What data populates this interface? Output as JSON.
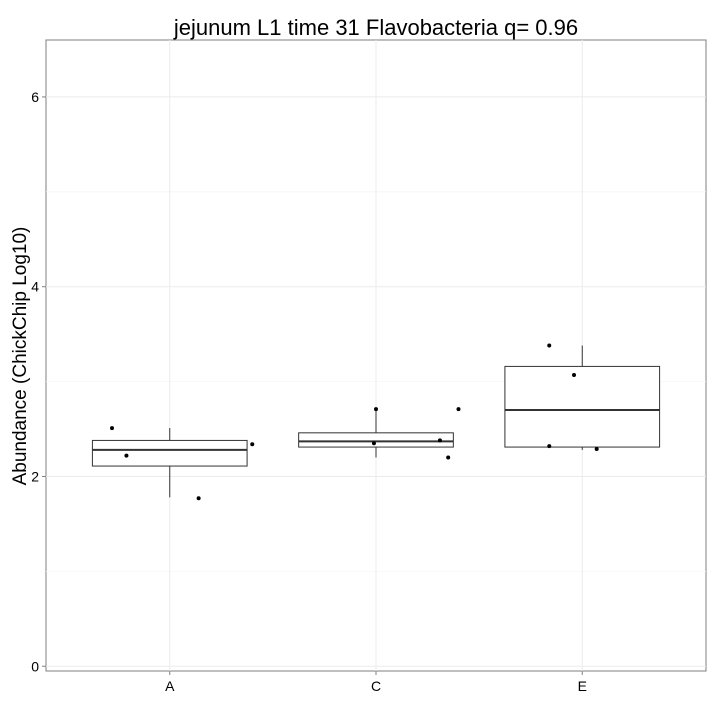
{
  "chart_data": {
    "type": "box",
    "title": "jejunum L1 time 31 Flavobacteria q= 0.96",
    "xlabel": "",
    "ylabel": "Abundance (ChickChip Log10)",
    "ylim": [
      -0.05,
      6.6
    ],
    "y_ticks": [
      0,
      2,
      4,
      6
    ],
    "categories": [
      "A",
      "C",
      "E"
    ],
    "grid": true,
    "boxes": [
      {
        "category": "A",
        "whisker_low": 1.78,
        "q1": 2.11,
        "median": 2.28,
        "q3": 2.38,
        "whisker_high": 2.51
      },
      {
        "category": "C",
        "whisker_low": 2.2,
        "q1": 2.31,
        "median": 2.37,
        "q3": 2.46,
        "whisker_high": 2.71
      },
      {
        "category": "E",
        "whisker_low": 2.28,
        "q1": 2.31,
        "median": 2.7,
        "q3": 3.16,
        "whisker_high": 3.38
      }
    ],
    "points": [
      {
        "category": "A",
        "x": 0.72,
        "y": 2.51
      },
      {
        "category": "A",
        "x": 0.79,
        "y": 2.22
      },
      {
        "category": "A",
        "x": 1.14,
        "y": 1.77
      },
      {
        "category": "A",
        "x": 1.4,
        "y": 2.34
      },
      {
        "category": "C",
        "x": 2.0,
        "y": 2.71
      },
      {
        "category": "C",
        "x": 1.99,
        "y": 2.35
      },
      {
        "category": "C",
        "x": 2.31,
        "y": 2.38
      },
      {
        "category": "C",
        "x": 2.35,
        "y": 2.2
      },
      {
        "category": "C",
        "x": 2.4,
        "y": 2.71
      },
      {
        "category": "E",
        "x": 2.84,
        "y": 2.32
      },
      {
        "category": "E",
        "x": 2.84,
        "y": 3.38
      },
      {
        "category": "E",
        "x": 2.96,
        "y": 3.07
      },
      {
        "category": "E",
        "x": 3.07,
        "y": 2.29
      }
    ]
  }
}
